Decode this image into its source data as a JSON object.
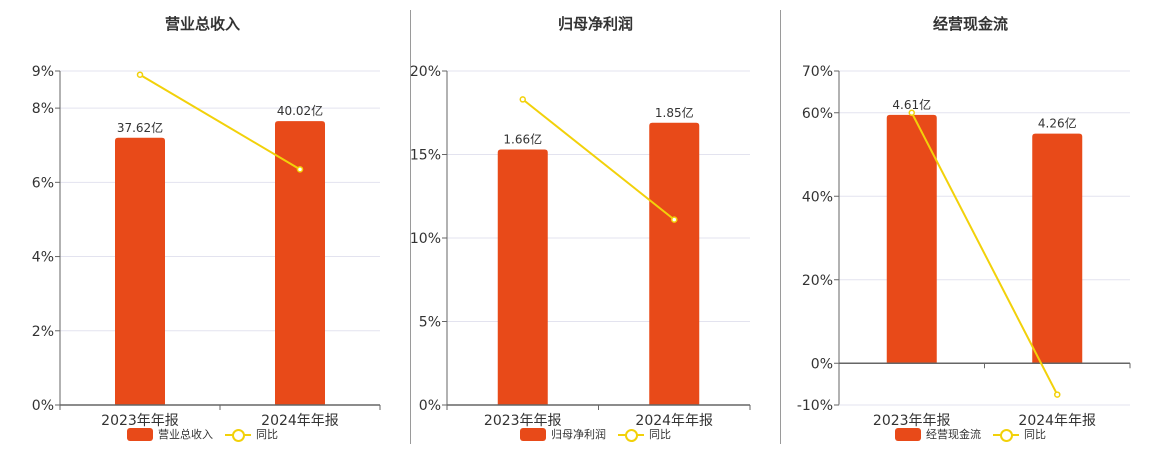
{
  "colors": {
    "bar": "#e84a19",
    "line": "#f2d10a",
    "grid": "#e3e3ef",
    "axis": "#666666",
    "text": "#333333"
  },
  "chart_data": [
    {
      "type": "bar",
      "title": "营业总收入",
      "categories": [
        "2023年年报",
        "2024年年报"
      ],
      "ylim": [
        0,
        9
      ],
      "yticks": [
        0,
        2,
        4,
        6,
        8,
        9
      ],
      "ytick_labels": [
        "0%",
        "2%",
        "4%",
        "6%",
        "8%",
        "9%"
      ],
      "grid": true,
      "legend_position": "bottom",
      "series": [
        {
          "name": "营业总收入",
          "type": "bar",
          "values": [
            7.2,
            7.65
          ],
          "labels": [
            "37.62亿",
            "40.02亿"
          ]
        },
        {
          "name": "同比",
          "type": "line",
          "values": [
            8.9,
            6.35
          ]
        }
      ]
    },
    {
      "type": "bar",
      "title": "归母净利润",
      "categories": [
        "2023年年报",
        "2024年年报"
      ],
      "ylim": [
        0,
        20
      ],
      "yticks": [
        0,
        5,
        10,
        15,
        20
      ],
      "ytick_labels": [
        "0%",
        "5%",
        "10%",
        "15%",
        "20%"
      ],
      "grid": true,
      "legend_position": "bottom",
      "series": [
        {
          "name": "归母净利润",
          "type": "bar",
          "values": [
            15.3,
            16.9
          ],
          "labels": [
            "1.66亿",
            "1.85亿"
          ]
        },
        {
          "name": "同比",
          "type": "line",
          "values": [
            18.3,
            11.1
          ]
        }
      ]
    },
    {
      "type": "bar",
      "title": "经营现金流",
      "categories": [
        "2023年年报",
        "2024年年报"
      ],
      "ylim": [
        -10,
        70
      ],
      "yticks": [
        -10,
        0,
        20,
        40,
        60,
        70
      ],
      "ytick_labels": [
        "-10%",
        "0%",
        "20%",
        "40%",
        "60%",
        "70%"
      ],
      "grid": true,
      "legend_position": "bottom",
      "series": [
        {
          "name": "经营现金流",
          "type": "bar",
          "values": [
            59.5,
            55.0
          ],
          "labels": [
            "4.61亿",
            "4.26亿"
          ]
        },
        {
          "name": "同比",
          "type": "line",
          "values": [
            60.0,
            -7.5
          ]
        }
      ]
    }
  ]
}
